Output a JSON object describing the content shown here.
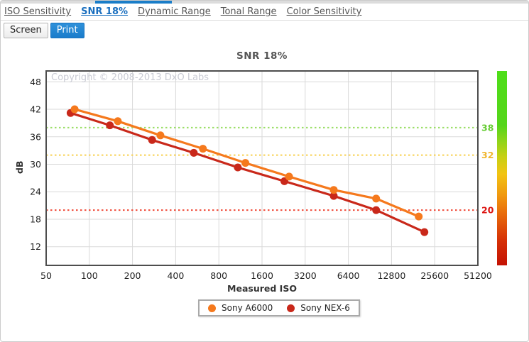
{
  "tabs": [
    {
      "label": "ISO Sensitivity",
      "active": false
    },
    {
      "label": "SNR 18%",
      "active": true
    },
    {
      "label": "Dynamic Range",
      "active": false
    },
    {
      "label": "Tonal Range",
      "active": false
    },
    {
      "label": "Color Sensitivity",
      "active": false
    }
  ],
  "view_buttons": [
    {
      "label": "Screen",
      "active": false
    },
    {
      "label": "Print",
      "active": true
    }
  ],
  "chart_data": {
    "type": "line",
    "title": "SNR 18%",
    "watermark": "Copyright © 2008-2013 DxO Labs",
    "xlabel": "Measured ISO",
    "ylabel": "dB",
    "x_scale": "log2",
    "xlim": [
      50,
      51200
    ],
    "ylim": [
      7.93,
      50.37
    ],
    "x_ticks": [
      "50",
      "100",
      "200",
      "400",
      "800",
      "1600",
      "3200",
      "6400",
      "12800",
      "25600",
      "51200"
    ],
    "x_tick_values": [
      50,
      100,
      200,
      400,
      800,
      1600,
      3200,
      6400,
      12800,
      25600,
      51200
    ],
    "y_ticks": [
      48,
      42,
      36,
      30,
      24,
      18,
      12
    ],
    "grid": true,
    "legend_position": "bottom",
    "thresholds": [
      {
        "label": "38",
        "value": 38,
        "line_color": "#9ade66",
        "label_color": "#66cc33"
      },
      {
        "label": "32",
        "value": 32,
        "line_color": "#f7d050",
        "label_color": "#f0b62e"
      },
      {
        "label": "20",
        "value": 20,
        "line_color": "#f04a38",
        "label_color": "#dd1512"
      }
    ],
    "series": [
      {
        "name": "Sony A6000",
        "color": "#f5791d",
        "points": [
          [
            79,
            42.0
          ],
          [
            158,
            39.4
          ],
          [
            313,
            36.3
          ],
          [
            620,
            33.4
          ],
          [
            1225,
            30.3
          ],
          [
            2470,
            27.3
          ],
          [
            5060,
            24.4
          ],
          [
            10000,
            22.5
          ],
          [
            19800,
            18.6
          ]
        ]
      },
      {
        "name": "Sony NEX-6",
        "color": "#c9281a",
        "points": [
          [
            74,
            41.2
          ],
          [
            139,
            38.5
          ],
          [
            274,
            35.3
          ],
          [
            535,
            32.5
          ],
          [
            1085,
            29.3
          ],
          [
            2290,
            26.3
          ],
          [
            5060,
            23.1
          ],
          [
            10000,
            20.0
          ],
          [
            21700,
            15.2
          ]
        ]
      }
    ],
    "gradient_bar": [
      {
        "offset": 0.0,
        "color": "#4ede19"
      },
      {
        "offset": 0.28,
        "color": "#55d51b"
      },
      {
        "offset": 0.36,
        "color": "#8ed41a"
      },
      {
        "offset": 0.44,
        "color": "#c6d015"
      },
      {
        "offset": 0.53,
        "color": "#f2c413"
      },
      {
        "offset": 0.64,
        "color": "#f0980f"
      },
      {
        "offset": 0.72,
        "color": "#ea720c"
      },
      {
        "offset": 0.87,
        "color": "#d63106"
      },
      {
        "offset": 1.0,
        "color": "#c41204"
      }
    ]
  },
  "colors": {
    "accent_blue": "#1a7dc8",
    "grid": "#d9d9d9",
    "plot_border": "#4d4d4d",
    "tick_text": "#222222",
    "watermark": "#c9cbd4"
  }
}
